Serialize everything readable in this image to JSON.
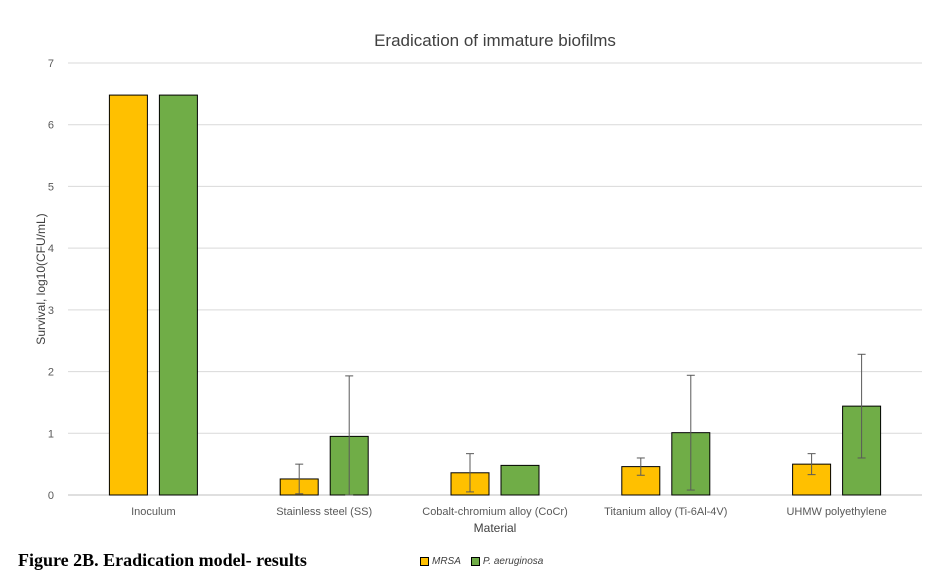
{
  "chart_data": {
    "type": "bar",
    "title": "Eradication of immature biofilms",
    "xlabel": "Material",
    "ylabel": "Survival, log10(CFU/mL)",
    "ylim": [
      0,
      7
    ],
    "yticks": [
      "0",
      "1",
      "2",
      "3",
      "4",
      "5",
      "6",
      "7"
    ],
    "grid": true,
    "legend_position": "bottom",
    "categories": [
      "Inoculum",
      "Stainless steel (SS)",
      "Cobalt-chromium alloy (CoCr)",
      "Titanium alloy (Ti-6Al-4V)",
      "UHMW polyethylene"
    ],
    "series": [
      {
        "name": "MRSA",
        "color": "#FFC000",
        "values": [
          6.48,
          0.26,
          0.36,
          0.46,
          0.5
        ],
        "errors": [
          null,
          0.24,
          0.31,
          0.14,
          0.17
        ]
      },
      {
        "name": "P. aeruginosa",
        "color": "#70AD47",
        "values": [
          6.48,
          0.95,
          0.48,
          1.01,
          1.44
        ],
        "errors": [
          null,
          0.98,
          null,
          0.93,
          0.84
        ]
      }
    ]
  },
  "caption": "Figure 2B. Eradication model- results"
}
